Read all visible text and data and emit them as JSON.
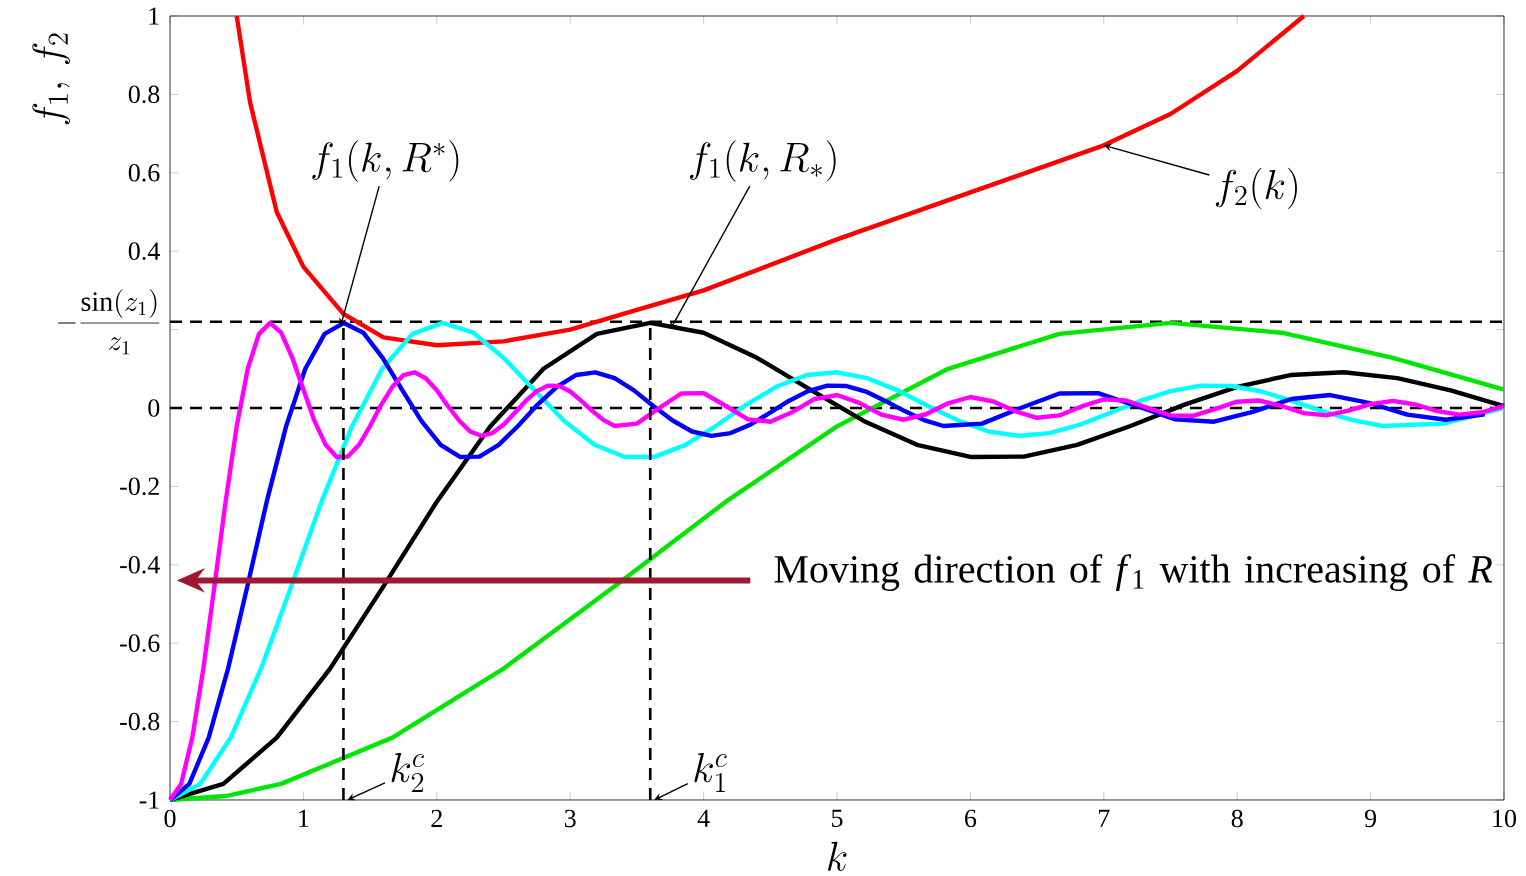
{
  "chart_data": {
    "type": "line",
    "xlabel": "k",
    "ylabel": "f_1,\\, f_2",
    "xlim": [
      0,
      10
    ],
    "ylim": [
      -1,
      1
    ],
    "xticks": [
      0,
      1,
      2,
      3,
      4,
      5,
      6,
      7,
      8,
      9,
      10
    ],
    "yticks": [
      -1,
      -0.8,
      -0.6,
      -0.4,
      -0.2,
      0,
      {
        "value": 0.2,
        "label": null
      },
      0.4,
      0.6,
      0.8,
      1
    ],
    "series": [
      {
        "color": "#ff0000",
        "x": [
          0.5,
          0.6,
          0.8,
          1.0,
          1.3,
          1.6,
          2.0,
          2.5,
          3.0,
          3.5,
          4.0,
          5.0,
          6.0,
          7.0,
          7.5,
          8.0,
          8.5
        ],
        "values": [
          1.0,
          0.78,
          0.5,
          0.36,
          0.24,
          0.18,
          0.16,
          0.17,
          0.2,
          0.25,
          0.3,
          0.43,
          0.55,
          0.67,
          0.75,
          0.86,
          1.0
        ]
      },
      {
        "color": "#00e600",
        "x": [
          0,
          0.417,
          0.833,
          1.667,
          2.5,
          3.333,
          4.167,
          5,
          5.833,
          6.667,
          7.5,
          8.333,
          9.167,
          10
        ],
        "values": [
          -1,
          -0.99,
          -0.959,
          -0.841,
          -0.665,
          -0.455,
          -0.239,
          -0.047,
          0.1,
          0.189,
          0.217,
          0.192,
          0.128,
          0.047
        ]
      },
      {
        "color": "#000000",
        "x": [
          0,
          0.4,
          0.8,
          1.2,
          1.6,
          2.0,
          2.4,
          2.8,
          3.2,
          3.6,
          4.0,
          4.4,
          4.8,
          5.2,
          5.6,
          6.0,
          6.4,
          6.8,
          7.2,
          7.6,
          8.0,
          8.4,
          8.8,
          9.2,
          9.6,
          10.0
        ],
        "values": [
          -1,
          -0.959,
          -0.841,
          -0.665,
          -0.455,
          -0.239,
          -0.047,
          0.1,
          0.189,
          0.217,
          0.192,
          0.128,
          0.047,
          -0.033,
          -0.094,
          -0.125,
          -0.124,
          -0.094,
          -0.046,
          0.008,
          0.054,
          0.084,
          0.091,
          0.076,
          0.045,
          0.005
        ]
      },
      {
        "color": "#00ffff",
        "x": [
          0,
          0.227,
          0.455,
          0.682,
          0.909,
          1.136,
          1.364,
          1.591,
          1.818,
          2.045,
          2.273,
          2.5,
          2.727,
          2.955,
          3.182,
          3.409,
          3.636,
          3.864,
          4.091,
          4.318,
          4.545,
          4.773,
          5.0,
          5.227,
          5.455,
          5.682,
          5.909,
          6.136,
          6.364,
          6.591,
          6.818,
          7.045,
          7.273,
          7.5,
          7.727,
          7.955,
          8.182,
          8.409,
          8.636,
          8.864,
          9.091,
          9.545,
          10.0
        ],
        "values": [
          -1,
          -0.959,
          -0.841,
          -0.665,
          -0.455,
          -0.239,
          -0.047,
          0.1,
          0.189,
          0.217,
          0.192,
          0.128,
          0.047,
          -0.033,
          -0.094,
          -0.125,
          -0.124,
          -0.094,
          -0.046,
          0.008,
          0.054,
          0.084,
          0.091,
          0.076,
          0.045,
          0.005,
          -0.032,
          -0.06,
          -0.071,
          -0.064,
          -0.043,
          -0.013,
          0.018,
          0.043,
          0.057,
          0.056,
          0.042,
          0.018,
          -0.008,
          -0.031,
          -0.046,
          -0.04,
          0.0
        ]
      },
      {
        "color": "#0000ff",
        "x": [
          0,
          0.145,
          0.29,
          0.435,
          0.58,
          0.725,
          0.87,
          1.014,
          1.159,
          1.304,
          1.449,
          1.594,
          1.739,
          1.884,
          2.029,
          2.174,
          2.319,
          2.464,
          2.609,
          2.754,
          2.899,
          3.043,
          3.188,
          3.333,
          3.478,
          3.623,
          3.768,
          3.913,
          4.058,
          4.203,
          4.348,
          4.493,
          4.638,
          4.783,
          4.928,
          5.072,
          5.217,
          5.362,
          5.507,
          5.652,
          5.797,
          6.087,
          6.377,
          6.667,
          6.957,
          7.246,
          7.536,
          7.826,
          8.116,
          8.406,
          8.696,
          8.986,
          9.275,
          9.565,
          9.855
        ],
        "values": [
          -1,
          -0.959,
          -0.841,
          -0.665,
          -0.455,
          -0.239,
          -0.047,
          0.1,
          0.189,
          0.217,
          0.192,
          0.128,
          0.047,
          -0.033,
          -0.094,
          -0.125,
          -0.124,
          -0.094,
          -0.046,
          0.008,
          0.054,
          0.084,
          0.091,
          0.076,
          0.045,
          0.005,
          -0.032,
          -0.06,
          -0.071,
          -0.064,
          -0.043,
          -0.013,
          0.018,
          0.043,
          0.057,
          0.056,
          0.042,
          0.018,
          -0.008,
          -0.031,
          -0.046,
          -0.04,
          0.0,
          0.037,
          0.038,
          0.005,
          -0.029,
          -0.035,
          -0.01,
          0.023,
          0.033,
          0.013,
          -0.017,
          -0.03,
          -0.016
        ]
      },
      {
        "color": "#ff00ff",
        "x": [
          0,
          0.083,
          0.167,
          0.25,
          0.333,
          0.417,
          0.5,
          0.583,
          0.667,
          0.75,
          0.833,
          0.917,
          1.0,
          1.083,
          1.167,
          1.25,
          1.333,
          1.417,
          1.5,
          1.583,
          1.667,
          1.75,
          1.833,
          1.917,
          2.0,
          2.083,
          2.167,
          2.25,
          2.333,
          2.417,
          2.5,
          2.583,
          2.667,
          2.75,
          2.833,
          2.917,
          3.0,
          3.083,
          3.167,
          3.25,
          3.333,
          3.5,
          3.667,
          3.833,
          4.0,
          4.167,
          4.333,
          4.5,
          4.667,
          4.833,
          5.0,
          5.167,
          5.333,
          5.5,
          5.667,
          5.833,
          6.0,
          6.167,
          6.333,
          6.5,
          6.667,
          6.833,
          7.0,
          7.167,
          7.333,
          7.5,
          7.667,
          7.833,
          8.0,
          8.167,
          8.333,
          8.5,
          8.667,
          8.833,
          9.0,
          9.167,
          9.333,
          9.5,
          9.667,
          9.833,
          10.0
        ],
        "values": [
          -1,
          -0.959,
          -0.841,
          -0.665,
          -0.455,
          -0.239,
          -0.047,
          0.1,
          0.189,
          0.217,
          0.192,
          0.128,
          0.047,
          -0.033,
          -0.094,
          -0.125,
          -0.124,
          -0.094,
          -0.046,
          0.008,
          0.054,
          0.084,
          0.091,
          0.076,
          0.045,
          0.005,
          -0.032,
          -0.06,
          -0.071,
          -0.064,
          -0.043,
          -0.013,
          0.018,
          0.043,
          0.057,
          0.056,
          0.042,
          0.018,
          -0.008,
          -0.031,
          -0.046,
          -0.04,
          0.0,
          0.037,
          0.038,
          0.005,
          -0.029,
          -0.035,
          -0.01,
          0.023,
          0.033,
          0.013,
          -0.017,
          -0.03,
          -0.016,
          0.012,
          0.028,
          0.017,
          -0.008,
          -0.025,
          -0.019,
          0.004,
          0.022,
          0.019,
          0.0,
          -0.019,
          -0.02,
          -0.003,
          0.016,
          0.019,
          0.005,
          -0.013,
          -0.019,
          -0.007,
          0.01,
          0.018,
          0.009,
          -0.008,
          -0.017,
          -0.011,
          0.005
        ]
      },
      {
        "color": "#000000",
        "line_style": "dashed",
        "x": [
          1.3,
          1.3
        ],
        "values": [
          -1,
          0.22
        ]
      },
      {
        "color": "#000000",
        "line_style": "dashed",
        "x": [
          3.6,
          3.6
        ],
        "values": [
          -1,
          0.22
        ]
      }
    ],
    "ref_lines": [
      {
        "axis": "y",
        "value": 0.22,
        "label": "-\\frac{\\sin(z_1)}{z_1}",
        "line_style": "dashed",
        "color": "#000000"
      },
      {
        "axis": "y",
        "value": 0,
        "line_style": "dashed",
        "color": "#000000"
      }
    ],
    "annotations": [
      {
        "text": "f_1(k,R^*)",
        "x": 1.28,
        "y": 0.21
      },
      {
        "text": "f_1(k,R_*)",
        "x": 3.75,
        "y": 0.2
      },
      {
        "text": "f_2(k)",
        "x": 7.0,
        "y": 0.67
      },
      {
        "text": "k_2^c",
        "x": 1.33,
        "y": -1
      },
      {
        "text": "k_1^c",
        "x": 3.63,
        "y": -1
      },
      "Moving direction of *f*$_{1}$ with increasing of *R*"
    ]
  }
}
